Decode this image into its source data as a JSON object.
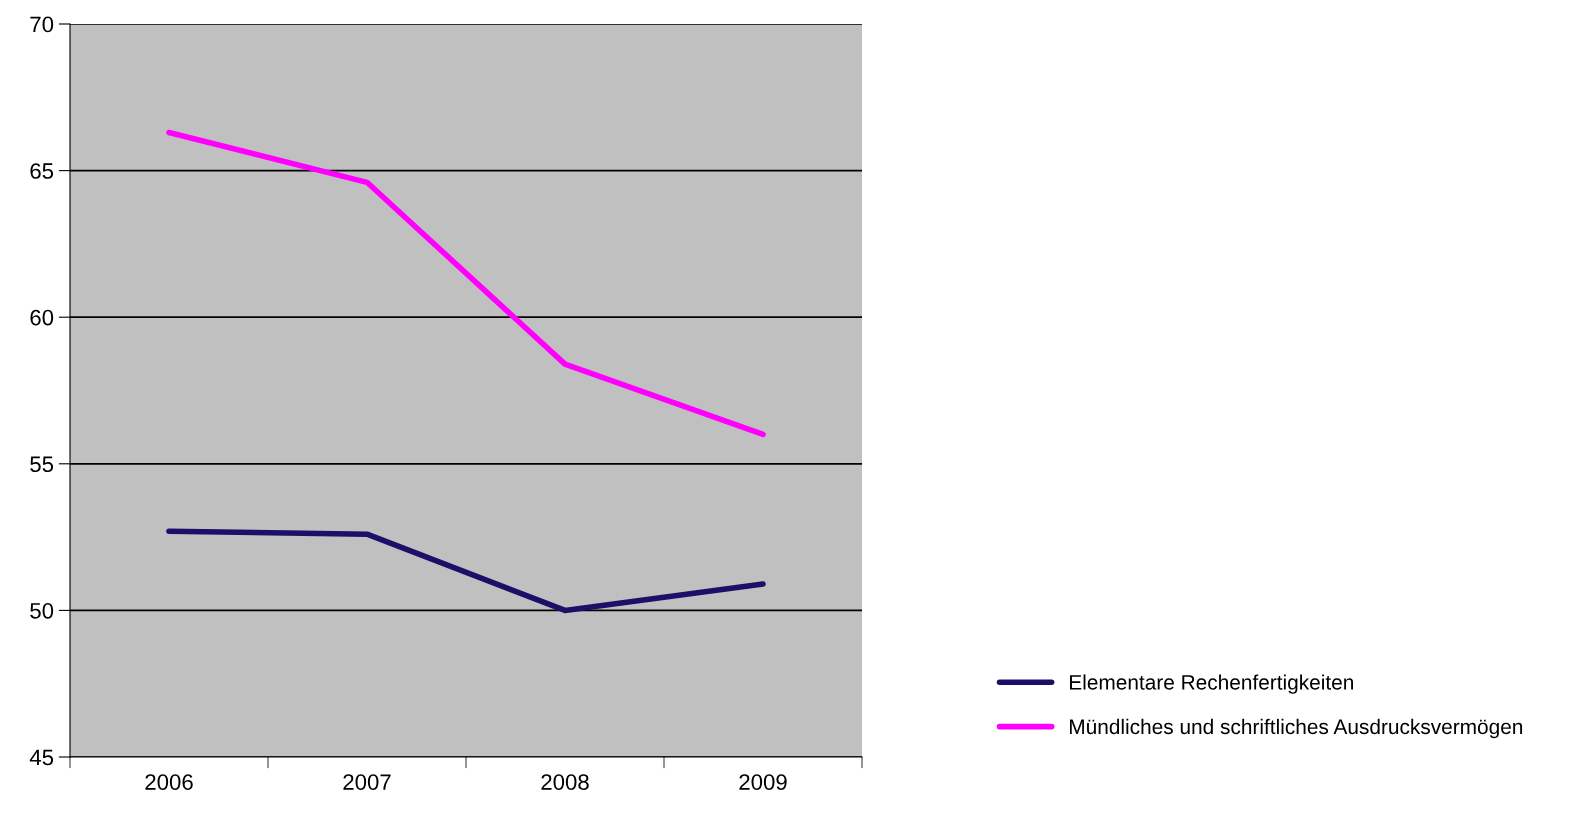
{
  "chart_data": {
    "type": "line",
    "categories": [
      "2006",
      "2007",
      "2008",
      "2009"
    ],
    "series": [
      {
        "name": "Elementare Rechenfertigkeiten",
        "color": "#1a1068",
        "values": [
          52.7,
          52.6,
          50.0,
          50.9
        ]
      },
      {
        "name": "Mündliches und schriftliches Ausdrucksvermögen",
        "color": "#ff00ff",
        "values": [
          66.3,
          64.6,
          58.4,
          56.0
        ]
      }
    ],
    "ylim": [
      45,
      70
    ],
    "yticks": [
      45,
      50,
      55,
      60,
      65,
      70
    ],
    "grid": "y",
    "legend": "bottom right",
    "marker": "none",
    "line_style": "solid"
  }
}
